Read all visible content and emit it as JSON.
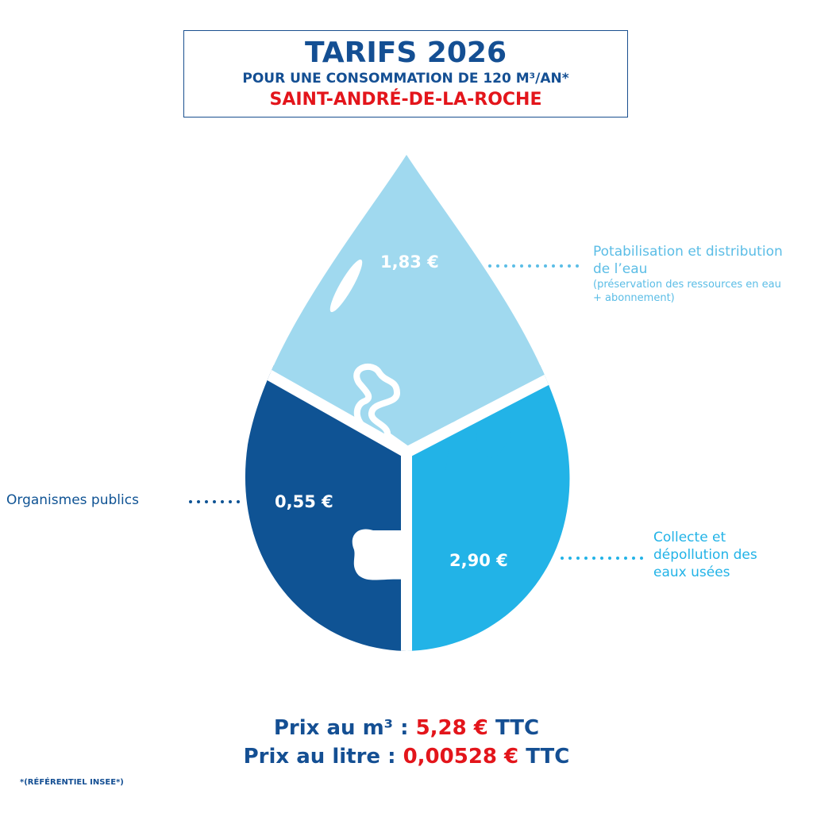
{
  "header": {
    "title": "TARIFS 2026",
    "subtitle": "POUR UNE CONSOMMATION DE 120 M³/AN*",
    "location": "SAINT-ANDRÉ-DE-LA-ROCHE"
  },
  "segments": [
    {
      "value": "1,83 €",
      "label": "Potabilisation et distribution de l’eau",
      "detail": "(préservation des ressources en eau + abonnement)",
      "color": "#a0d9ef"
    },
    {
      "value": "0,55 €",
      "label": "Organismes publics",
      "color": "#0f5394"
    },
    {
      "value": "2,90 €",
      "label": "Collecte et dépollution des eaux usées",
      "color": "#22b3e7"
    }
  ],
  "prices": {
    "m3_label": "Prix au m³ :",
    "m3_value": "5,28 €",
    "m3_suffix": "TTC",
    "litre_label": "Prix au litre :",
    "litre_value": "0,00528 €",
    "litre_suffix": "TTC"
  },
  "footnote": "*(RÉFÉRENTIEL INSEE*)"
}
